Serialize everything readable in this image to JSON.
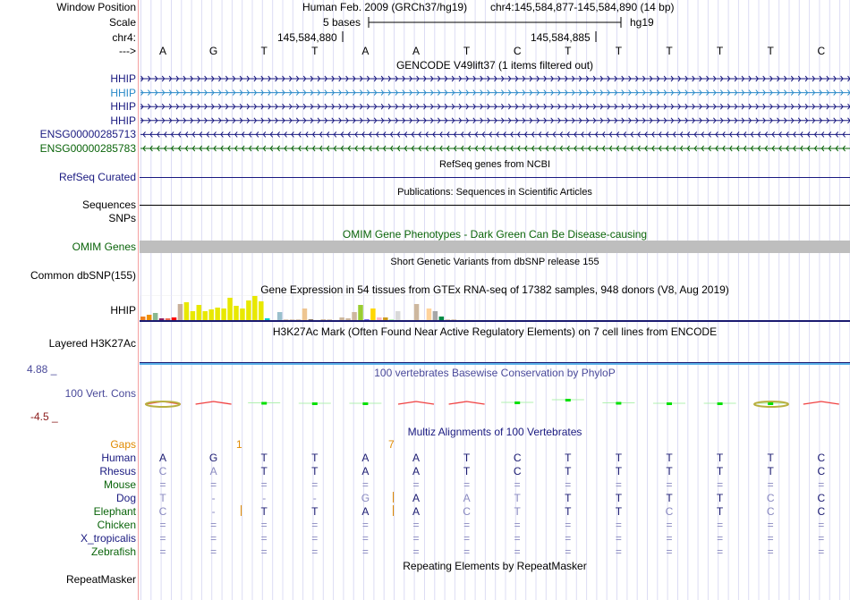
{
  "header": {
    "window_position_label": "Window Position",
    "scale_label": "Scale",
    "chrom_label": "chr4:",
    "strand_label": "--->",
    "assembly": "Human Feb. 2009 (GRCh37/hg19)",
    "position": "chr4:145,584,877-145,584,890 (14 bp)",
    "scale_text": "5 bases",
    "scale_db": "hg19",
    "tick1": "145,584,880",
    "tick2": "145,584,885"
  },
  "bases": [
    "A",
    "G",
    "T",
    "T",
    "A",
    "A",
    "T",
    "C",
    "T",
    "T",
    "T",
    "T",
    "T",
    "C"
  ],
  "gencode": {
    "title": "GENCODE V49lift37 (1 items filtered out)",
    "genes": [
      {
        "name": "HHIP",
        "color": "#1a1a80",
        "strand": "+"
      },
      {
        "name": "HHIP",
        "color": "#2a8ac8",
        "strand": "+"
      },
      {
        "name": "HHIP",
        "color": "#1a1a80",
        "strand": "+"
      },
      {
        "name": "HHIP",
        "color": "#1a1a80",
        "strand": "+"
      },
      {
        "name": "ENSG00000285713",
        "color": "#1a1a80",
        "strand": "-"
      },
      {
        "name": "ENSG00000285783",
        "color": "#0a640a",
        "strand": "-"
      }
    ]
  },
  "refseq": {
    "title": "RefSeq genes from NCBI",
    "label": "RefSeq Curated"
  },
  "pubs": {
    "title": "Publications: Sequences in Scientific Articles",
    "label": "Sequences"
  },
  "snps": {
    "label": "SNPs"
  },
  "omim": {
    "title": "OMIM Gene Phenotypes - Dark Green Can Be Disease-causing",
    "label": "OMIM Genes"
  },
  "dbsnp": {
    "title": "Short Genetic Variants from dbSNP release 155",
    "label": "Common dbSNP(155)"
  },
  "gtex": {
    "title": "Gene Expression in 54 tissues from GTEx RNA-seq of 17382 samples, 948 donors (V8, Aug 2019)",
    "label": "HHIP",
    "values": [
      4,
      6,
      8,
      2,
      2,
      3,
      18,
      20,
      10,
      17,
      10,
      12,
      14,
      13,
      25,
      16,
      13,
      22,
      27,
      21,
      2,
      0,
      9,
      1,
      1,
      1,
      13,
      1,
      0,
      1,
      1,
      0,
      3,
      2,
      9,
      17,
      1,
      13,
      3,
      3,
      1,
      10,
      0,
      0,
      18,
      0,
      13,
      10,
      4,
      1,
      1,
      0,
      0,
      0
    ],
    "colors": [
      "#f08020",
      "#f09000",
      "#88b890",
      "#8b1c62",
      "#ee6a50",
      "#ff0000",
      "#c8b09a",
      "#e8e800",
      "#e8e800",
      "#e8e800",
      "#e8e800",
      "#e8e800",
      "#e8e800",
      "#e8e800",
      "#e8e800",
      "#e8e800",
      "#e8e800",
      "#e8e800",
      "#e8e800",
      "#e8e800",
      "#00cdcd",
      "#9ac0cd",
      "#9ac0cd",
      "#d8c8b8",
      "#d8c8b8",
      "#d8c8b8",
      "#eec591",
      "#8b7765",
      "#cdb79e",
      "#cdb79e",
      "#d8c8b8",
      "#cdb79e",
      "#cdb79e",
      "#cdb79e",
      "#cdb79e",
      "#9acd32",
      "#7a67ee",
      "#ffd700",
      "#ffb6c1",
      "#cd9b1d",
      "#b4eeb4",
      "#d9d9d9",
      "#d9d9d9",
      "#cdb79e",
      "#cdb79e",
      "#ffd39b",
      "#ffd39b",
      "#a6a6a6",
      "#008b45",
      "#d8c8b8",
      "#d8c8b8",
      "#d8c8b8",
      "#d8c8b8",
      "#d8c8b8"
    ]
  },
  "h3k27ac": {
    "title": "H3K27Ac Mark (Often Found Near Active Regulatory Elements) on 7 cell lines from ENCODE",
    "label": "Layered H3K27Ac"
  },
  "phylop": {
    "title": "100 vertebrates Basewise Conservation by PhyloP",
    "label": "100 Vert. Cons",
    "max": "4.88 _",
    "min": "-4.5 _",
    "values": [
      -0.6,
      -1.2,
      0.5,
      0,
      0,
      -0.8,
      -1.2,
      0.6,
      1.2,
      0.5,
      0.3,
      0.4,
      0.3,
      -0.6
    ]
  },
  "multiz": {
    "title": "Multiz Alignments of 100 Vertebrates",
    "gaps_label": "Gaps",
    "gap1": "1",
    "gap2": "7",
    "species": [
      {
        "name": "Human",
        "color": "#1a1a80",
        "bases": [
          "A",
          "G",
          "T",
          "T",
          "A",
          "A",
          "T",
          "C",
          "T",
          "T",
          "T",
          "T",
          "T",
          "C"
        ],
        "light": []
      },
      {
        "name": "Rhesus",
        "color": "#1a1a80",
        "bases": [
          "C",
          "A",
          "T",
          "T",
          "A",
          "A",
          "T",
          "C",
          "T",
          "T",
          "T",
          "T",
          "T",
          "C"
        ],
        "light": [
          0,
          1
        ]
      },
      {
        "name": "Mouse",
        "color": "#0a640a",
        "bases": [
          "=",
          "=",
          "=",
          "=",
          "=",
          "=",
          "=",
          "=",
          "=",
          "=",
          "=",
          "=",
          "=",
          "="
        ],
        "light": "all"
      },
      {
        "name": "Dog",
        "color": "#1a1a80",
        "bases": [
          "T",
          "-",
          "-",
          "-",
          "G",
          "A",
          "A",
          "T",
          "T",
          "T",
          "T",
          "T",
          "C",
          "C"
        ],
        "light": [
          0,
          1,
          2,
          3,
          4,
          6,
          7,
          12
        ]
      },
      {
        "name": "Elephant",
        "color": "#0a640a",
        "bases": [
          "C",
          "-",
          "T",
          "T",
          "A",
          "A",
          "C",
          "T",
          "T",
          "T",
          "C",
          "T",
          "C",
          "C"
        ],
        "light": [
          0,
          1,
          6,
          7,
          10,
          12
        ]
      },
      {
        "name": "Chicken",
        "color": "#0a640a",
        "bases": [
          "=",
          "=",
          "=",
          "=",
          "=",
          "=",
          "=",
          "=",
          "=",
          "=",
          "=",
          "=",
          "=",
          "="
        ],
        "light": "all"
      },
      {
        "name": "X_tropicalis",
        "color": "#1a1a80",
        "bases": [
          "=",
          "=",
          "=",
          "=",
          "=",
          "=",
          "=",
          "=",
          "=",
          "=",
          "=",
          "=",
          "=",
          "="
        ],
        "light": "all"
      },
      {
        "name": "Zebrafish",
        "color": "#0a640a",
        "bases": [
          "=",
          "=",
          "=",
          "=",
          "=",
          "=",
          "=",
          "=",
          "=",
          "=",
          "=",
          "=",
          "=",
          "="
        ],
        "light": "all"
      }
    ]
  },
  "rmsk": {
    "title": "Repeating Elements by RepeatMasker",
    "label": "RepeatMasker"
  }
}
